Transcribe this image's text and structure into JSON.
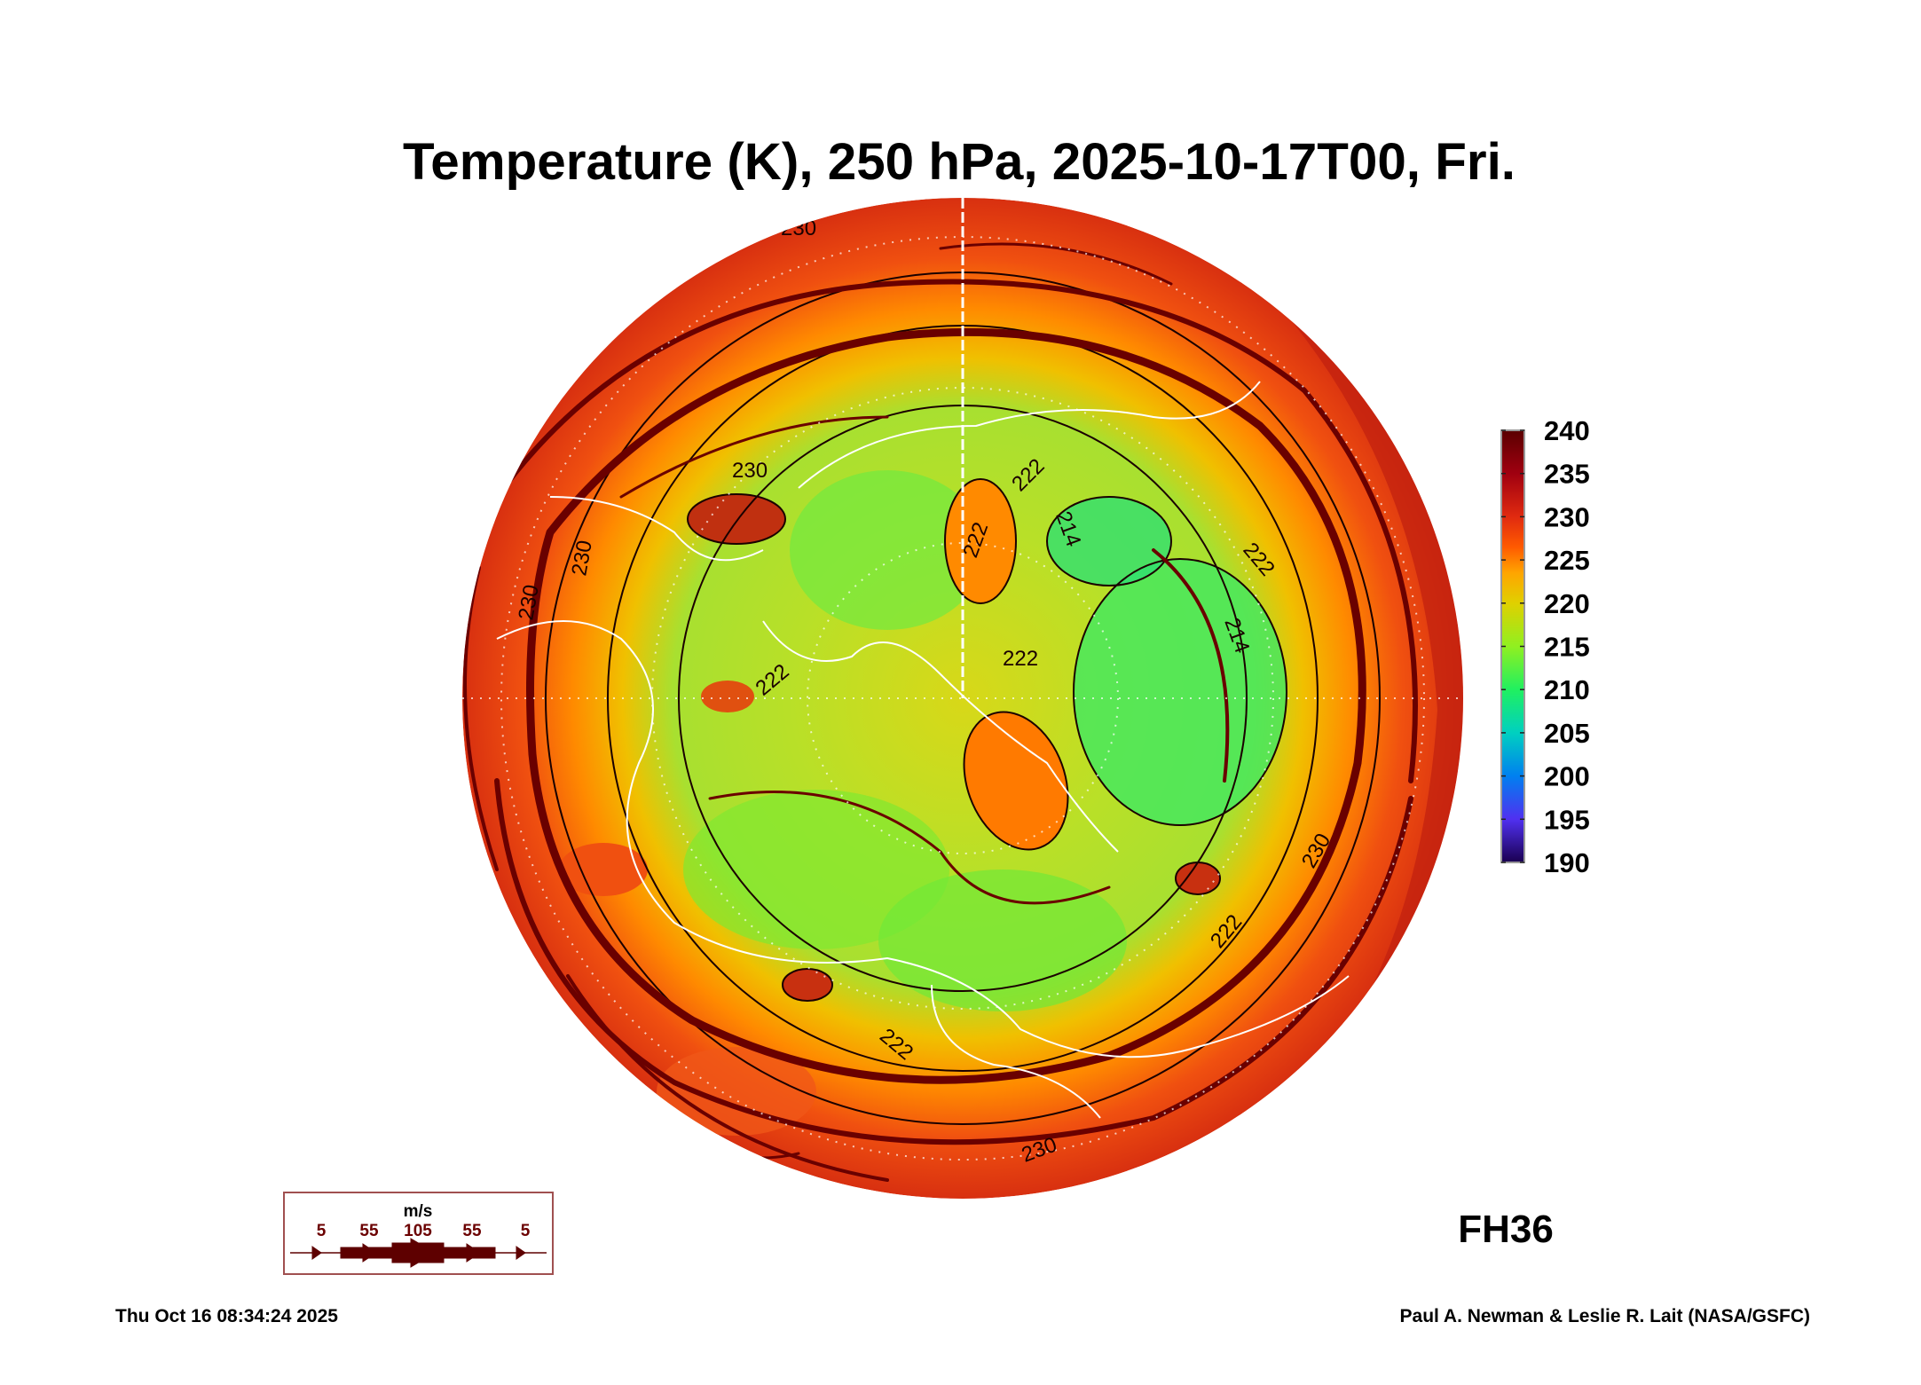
{
  "title": "Temperature (K), 250 hPa, 2025-10-17T00, Fri.",
  "forecast_hour": "FH36",
  "timestamp": "Thu Oct 16 08:34:24 2025",
  "credit": "Paul A. Newman & Leslie R. Lait (NASA/GSFC)",
  "colorbar": {
    "units": "K",
    "min": 190,
    "max": 240,
    "ticks": [
      "240",
      "235",
      "230",
      "225",
      "220",
      "215",
      "210",
      "205",
      "200",
      "195",
      "190"
    ],
    "colors": [
      "#5a0000",
      "#a00010",
      "#e02a10",
      "#ff5a00",
      "#ffa500",
      "#e0d000",
      "#90f020",
      "#20f060",
      "#00d0c0",
      "#0080f0",
      "#5030f0",
      "#1a0050"
    ]
  },
  "wind_legend": {
    "units": "m/s",
    "labels": [
      "5",
      "55",
      "105",
      "55",
      "5"
    ],
    "color": "#5e0000"
  },
  "contour_labels": [
    "230",
    "230",
    "230",
    "230",
    "222",
    "222",
    "222",
    "222",
    "214",
    "214",
    "222",
    "230",
    "222",
    "222",
    "230"
  ],
  "colors": {
    "outer": "#e23a10",
    "inner": "#a8e030",
    "streamline": "#6a0000",
    "coastline": "#ffffff"
  }
}
